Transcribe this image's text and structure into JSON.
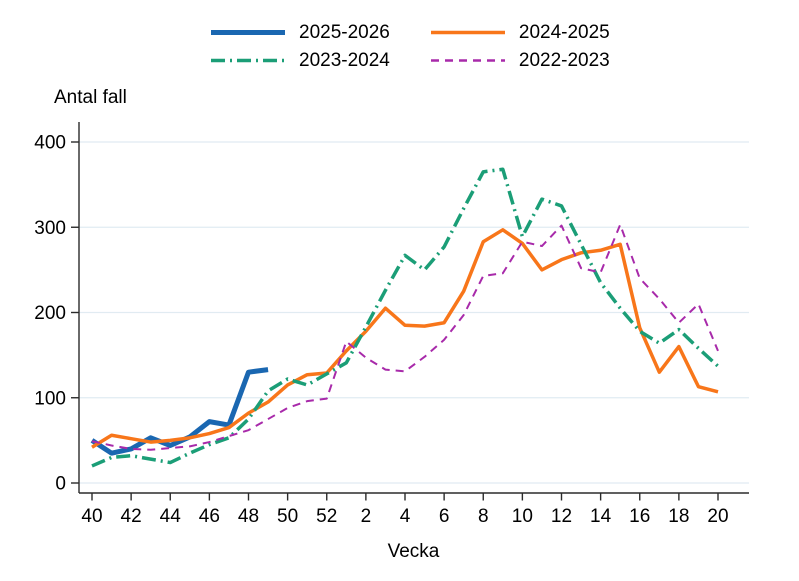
{
  "page": {
    "background": "#ffffff"
  },
  "chart_data": {
    "type": "line",
    "title": "Antal fall",
    "xlabel": "Vecka",
    "ylabel": "Antal fall",
    "ylim": [
      0,
      400
    ],
    "yticks": [
      0,
      100,
      200,
      300,
      400
    ],
    "grid": "horizontal, light",
    "legend_position": "top",
    "x_categories": [
      "40",
      "41",
      "42",
      "43",
      "44",
      "45",
      "46",
      "47",
      "48",
      "49",
      "50",
      "51",
      "52",
      "1",
      "2",
      "3",
      "4",
      "5",
      "6",
      "7",
      "8",
      "9",
      "10",
      "11",
      "12",
      "13",
      "14",
      "15",
      "16",
      "17",
      "18",
      "19",
      "20"
    ],
    "xtick_labels": [
      "40",
      "42",
      "44",
      "46",
      "48",
      "50",
      "52",
      "2",
      "4",
      "6",
      "8",
      "10",
      "12",
      "14",
      "16",
      "18",
      "20"
    ],
    "colors": {
      "axis": "#2b2b2b",
      "gridline": "#e1ebf2",
      "season_2025_2026": "#1a67b1",
      "season_2024_2025": "#f8761a",
      "season_2023_2024": "#1b9e77",
      "season_2022_2023": "#a82aaa"
    },
    "series": [
      {
        "name": "2025-2026",
        "color": "#1a67b1",
        "style": "solid",
        "width": 5,
        "values": [
          50,
          35,
          40,
          53,
          44,
          54,
          72,
          68,
          130,
          133
        ]
      },
      {
        "name": "2024-2025",
        "color": "#f8761a",
        "style": "solid",
        "width": 3.5,
        "values": [
          42,
          56,
          52,
          48,
          50,
          53,
          58,
          65,
          82,
          95,
          115,
          127,
          129,
          155,
          178,
          205,
          185,
          184,
          188,
          225,
          283,
          297,
          281,
          250,
          262,
          270,
          273,
          280,
          182,
          130,
          160,
          113,
          107
        ]
      },
      {
        "name": "2023-2024",
        "color": "#1b9e77",
        "style": "dash-dot",
        "width": 3.5,
        "values": [
          20,
          30,
          32,
          28,
          24,
          35,
          45,
          53,
          75,
          108,
          122,
          115,
          128,
          141,
          183,
          226,
          267,
          250,
          277,
          322,
          365,
          368,
          289,
          333,
          325,
          280,
          235,
          205,
          178,
          164,
          180,
          158,
          137
        ]
      },
      {
        "name": "2022-2023",
        "color": "#a82aaa",
        "style": "dashed",
        "width": 2,
        "values": [
          49,
          44,
          40,
          39,
          41,
          43,
          48,
          55,
          62,
          75,
          88,
          96,
          99,
          166,
          147,
          133,
          131,
          148,
          168,
          197,
          243,
          246,
          283,
          278,
          302,
          252,
          247,
          303,
          240,
          216,
          188,
          210,
          155
        ]
      }
    ]
  }
}
